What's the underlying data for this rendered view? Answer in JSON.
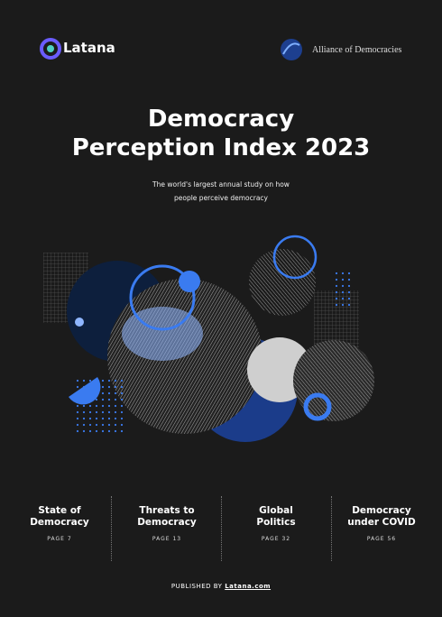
{
  "header": {
    "left_logo": "Latana",
    "right_logo": "Alliance of Democracies"
  },
  "title": [
    "Democracy",
    "Perception Index 2023"
  ],
  "subtitle": [
    "The world's largest annual study on how",
    "people perceive democracy"
  ],
  "sections": [
    {
      "title": [
        "State of",
        "Democracy"
      ],
      "page": "PAGE 7"
    },
    {
      "title": [
        "Threats to",
        "Democracy"
      ],
      "page": "PAGE 13"
    },
    {
      "title": [
        "Global",
        "Politics"
      ],
      "page": "PAGE 32"
    },
    {
      "title": [
        "Democracy",
        "under COVID"
      ],
      "page": "PAGE 56"
    }
  ],
  "footer": {
    "prefix": "PUBLISHED BY",
    "link": "Latana.com"
  }
}
